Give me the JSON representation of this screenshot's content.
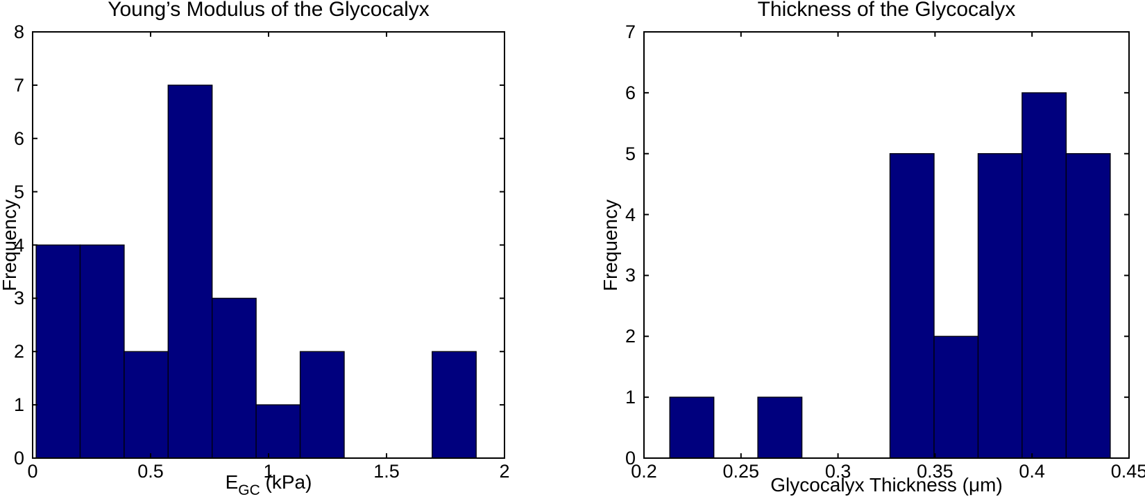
{
  "figure": {
    "background": "#FFFFFF"
  },
  "chart_data": [
    {
      "type": "bar",
      "title": "Young’s Modulus of the Glycocalyx",
      "ylabel": "Frequency",
      "xlabel": {
        "base": "E",
        "sub": "GC",
        "suffix": " (kPa)"
      },
      "xlim": [
        0,
        2
      ],
      "ylim": [
        0,
        8
      ],
      "xtick_values": [
        0,
        0.5,
        1,
        1.5,
        2
      ],
      "xtick_labels": [
        "0",
        "0.5",
        "1",
        "1.5",
        "2"
      ],
      "ytick_values": [
        0,
        1,
        2,
        3,
        4,
        5,
        6,
        7,
        8
      ],
      "ytick_labels": [
        "0",
        "1",
        "2",
        "3",
        "4",
        "5",
        "6",
        "7",
        "8"
      ],
      "bins": {
        "start": 0.015,
        "width": 0.1865
      },
      "counts": [
        4,
        4,
        2,
        7,
        3,
        1,
        2,
        0,
        0,
        2
      ],
      "grid": false,
      "legend": null,
      "colors": {
        "bar_fill": "#00007E",
        "bar_edge": "#000010",
        "axis": "#000000",
        "text": "#000000"
      }
    },
    {
      "type": "bar",
      "title": "Thickness of the Glycocalyx",
      "ylabel": "Frequency",
      "xlabel": {
        "base": "Glycocalyx Thickness (μm)",
        "sub": "",
        "suffix": ""
      },
      "xlim": [
        0.2,
        0.45
      ],
      "ylim": [
        0,
        7
      ],
      "xtick_values": [
        0.2,
        0.25,
        0.3,
        0.35,
        0.4,
        0.45
      ],
      "xtick_labels": [
        "0.2",
        "0.25",
        "0.3",
        "0.35",
        "0.4",
        "0.45"
      ],
      "ytick_values": [
        0,
        1,
        2,
        3,
        4,
        5,
        6,
        7
      ],
      "ytick_labels": [
        "0",
        "1",
        "2",
        "3",
        "4",
        "5",
        "6",
        "7"
      ],
      "bins": {
        "start": 0.2133,
        "width": 0.0227
      },
      "counts": [
        1,
        0,
        1,
        0,
        0,
        5,
        2,
        5,
        6,
        5
      ],
      "grid": false,
      "legend": null,
      "colors": {
        "bar_fill": "#00007E",
        "bar_edge": "#000010",
        "axis": "#000000",
        "text": "#000000"
      }
    }
  ]
}
